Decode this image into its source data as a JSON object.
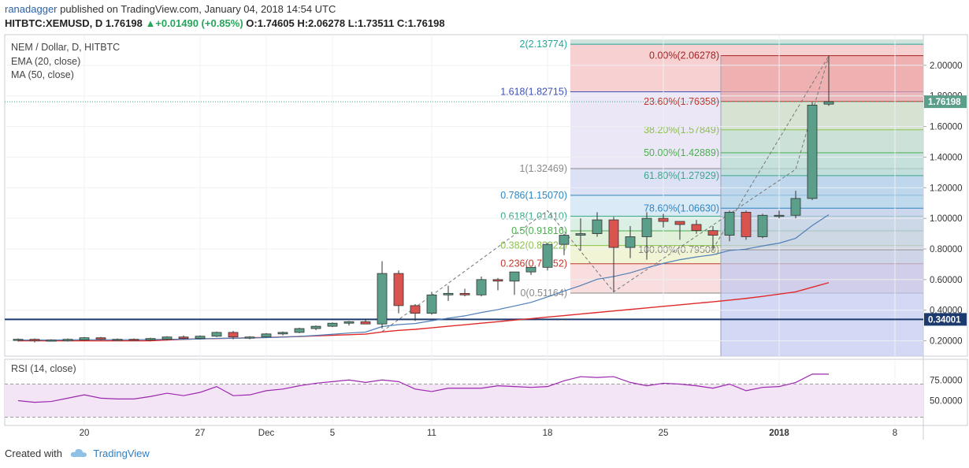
{
  "header": {
    "user": "ranadagger",
    "published": "published on TradingView.com, January 04, 2018 14:54 UTC",
    "symbol": "HITBTC:XEMUSD, D",
    "last": "1.76198",
    "change": "+0.01490 (+0.85%)",
    "open": "O:1.74605",
    "high": "H:2.06278",
    "low": "L:1.73511",
    "close": "C:1.76198"
  },
  "legend": {
    "title": "NEM / Dollar, D, HITBTC",
    "ema": "EMA (20, close)",
    "ma": "MA (50, close)",
    "rsi": "RSI (14, close)"
  },
  "footer": {
    "created": "Created with",
    "brand": "TradingView"
  },
  "colors": {
    "up": "#5b9e8a",
    "down": "#d9534f",
    "ema": "#4f7fb8",
    "ma": "#e02a2a",
    "rsi": "#9c27b0",
    "support": "#1c3a6e"
  },
  "chart_data": {
    "type": "candlestick",
    "title": "NEM / Dollar, D, HITBTC",
    "ylim": [
      0.1,
      2.2
    ],
    "yticks": [
      0.2,
      0.4,
      0.6,
      0.8,
      1.0,
      1.2,
      1.4,
      1.6,
      1.8,
      2.0
    ],
    "ytick_labels": [
      "0.20000",
      "0.40000",
      "0.60000",
      "0.80000",
      "1.00000",
      "1.20000",
      "1.40000",
      "1.60000",
      "1.80000",
      "2.00000"
    ],
    "xticks": [
      {
        "label": "20",
        "index": 4
      },
      {
        "label": "27",
        "index": 11
      },
      {
        "label": "Dec",
        "index": 15
      },
      {
        "label": "5",
        "index": 19
      },
      {
        "label": "11",
        "index": 25
      },
      {
        "label": "18",
        "index": 32
      },
      {
        "label": "25",
        "index": 39
      },
      {
        "label": "2018",
        "index": 46
      },
      {
        "label": "8",
        "index": 53
      }
    ],
    "candles": [
      [
        0.205,
        0.215,
        0.195,
        0.21
      ],
      [
        0.21,
        0.215,
        0.19,
        0.2
      ],
      [
        0.2,
        0.21,
        0.195,
        0.205
      ],
      [
        0.2,
        0.215,
        0.195,
        0.21
      ],
      [
        0.205,
        0.225,
        0.2,
        0.22
      ],
      [
        0.22,
        0.225,
        0.205,
        0.21
      ],
      [
        0.205,
        0.215,
        0.2,
        0.21
      ],
      [
        0.21,
        0.215,
        0.2,
        0.205
      ],
      [
        0.205,
        0.22,
        0.2,
        0.215
      ],
      [
        0.21,
        0.23,
        0.205,
        0.225
      ],
      [
        0.225,
        0.235,
        0.21,
        0.215
      ],
      [
        0.215,
        0.235,
        0.21,
        0.23
      ],
      [
        0.23,
        0.26,
        0.225,
        0.255
      ],
      [
        0.255,
        0.265,
        0.21,
        0.225
      ],
      [
        0.22,
        0.23,
        0.21,
        0.225
      ],
      [
        0.225,
        0.25,
        0.22,
        0.245
      ],
      [
        0.245,
        0.26,
        0.235,
        0.255
      ],
      [
        0.255,
        0.285,
        0.25,
        0.28
      ],
      [
        0.28,
        0.3,
        0.27,
        0.295
      ],
      [
        0.295,
        0.32,
        0.29,
        0.315
      ],
      [
        0.315,
        0.33,
        0.3,
        0.325
      ],
      [
        0.325,
        0.345,
        0.315,
        0.31
      ],
      [
        0.31,
        0.72,
        0.28,
        0.64
      ],
      [
        0.64,
        0.66,
        0.38,
        0.43
      ],
      [
        0.43,
        0.44,
        0.33,
        0.38
      ],
      [
        0.38,
        0.52,
        0.37,
        0.5
      ],
      [
        0.5,
        0.56,
        0.46,
        0.51
      ],
      [
        0.51,
        0.54,
        0.49,
        0.5
      ],
      [
        0.5,
        0.62,
        0.49,
        0.6
      ],
      [
        0.6,
        0.61,
        0.53,
        0.59
      ],
      [
        0.59,
        0.65,
        0.5,
        0.65
      ],
      [
        0.65,
        0.68,
        0.63,
        0.68
      ],
      [
        0.68,
        0.84,
        0.66,
        0.83
      ],
      [
        0.83,
        0.9,
        0.76,
        0.89
      ],
      [
        0.89,
        1.0,
        0.79,
        0.9
      ],
      [
        0.9,
        1.04,
        0.88,
        0.99
      ],
      [
        0.99,
        1.01,
        0.52,
        0.81
      ],
      [
        0.81,
        0.95,
        0.74,
        0.88
      ],
      [
        0.88,
        1.04,
        0.73,
        1.0
      ],
      [
        1.0,
        1.03,
        0.94,
        0.98
      ],
      [
        0.98,
        0.98,
        0.86,
        0.96
      ],
      [
        0.96,
        0.99,
        0.9,
        0.92
      ],
      [
        0.92,
        0.95,
        0.79,
        0.89
      ],
      [
        0.89,
        1.05,
        0.85,
        1.04
      ],
      [
        1.04,
        1.05,
        0.86,
        0.88
      ],
      [
        0.88,
        1.03,
        0.87,
        1.02
      ],
      [
        1.02,
        1.05,
        1.0,
        1.02
      ],
      [
        1.02,
        1.18,
        1.0,
        1.13
      ],
      [
        1.13,
        1.76,
        1.12,
        1.74
      ],
      [
        1.74605,
        2.06278,
        1.73511,
        1.76198
      ]
    ],
    "ema20": [
      0.205,
      0.205,
      0.205,
      0.206,
      0.207,
      0.207,
      0.207,
      0.207,
      0.208,
      0.21,
      0.21,
      0.212,
      0.216,
      0.217,
      0.218,
      0.221,
      0.224,
      0.229,
      0.235,
      0.243,
      0.251,
      0.257,
      0.293,
      0.306,
      0.313,
      0.331,
      0.348,
      0.363,
      0.385,
      0.404,
      0.427,
      0.451,
      0.487,
      0.525,
      0.561,
      0.602,
      0.62,
      0.644,
      0.677,
      0.706,
      0.73,
      0.748,
      0.762,
      0.79,
      0.799,
      0.82,
      0.838,
      0.87,
      0.953,
      1.024
    ],
    "ma50": [
      0.2,
      0.2,
      0.2,
      0.2,
      0.2,
      0.2,
      0.2,
      0.2,
      0.2,
      0.205,
      0.21,
      0.213,
      0.215,
      0.217,
      0.22,
      0.222,
      0.225,
      0.228,
      0.232,
      0.236,
      0.24,
      0.244,
      0.258,
      0.268,
      0.275,
      0.285,
      0.295,
      0.305,
      0.315,
      0.325,
      0.335,
      0.345,
      0.355,
      0.365,
      0.375,
      0.385,
      0.395,
      0.405,
      0.415,
      0.425,
      0.435,
      0.445,
      0.455,
      0.466,
      0.477,
      0.49,
      0.505,
      0.52,
      0.55,
      0.58
    ],
    "rsi": [
      50,
      48,
      49,
      53,
      57,
      53,
      52,
      52,
      55,
      59,
      56,
      60,
      67,
      56,
      57,
      62,
      64,
      68,
      71,
      73,
      75,
      72,
      75,
      73,
      64,
      61,
      65,
      65,
      65,
      68,
      67,
      66,
      67,
      74,
      79,
      78,
      79,
      72,
      68,
      71,
      70,
      68,
      65,
      70,
      62,
      66,
      67,
      72,
      82,
      82
    ],
    "rsi_ylim": [
      20,
      100
    ],
    "rsi_ticks": [
      50,
      75
    ],
    "rsi_tick_labels": [
      "50.0000",
      "75.0000"
    ],
    "rsi_band": [
      30,
      70
    ],
    "last_price_label": "1.76198",
    "support_level": 0.34001,
    "support_label": "0.34001",
    "fib_retracement_1": [
      {
        "label": "0.00%(2.06278)",
        "value": 2.06278,
        "color": "#a52222"
      },
      {
        "label": "23.60%(1.76358)",
        "value": 1.76358,
        "color": "#c0392b"
      },
      {
        "label": "38.20%(1.57849)",
        "value": 1.57849,
        "color": "#8bc34a"
      },
      {
        "label": "50.00%(1.42889)",
        "value": 1.42889,
        "color": "#4caf50"
      },
      {
        "label": "61.80%(1.27929)",
        "value": 1.27929,
        "color": "#3aa78a"
      },
      {
        "label": "78.60%(1.06630)",
        "value": 1.0663,
        "color": "#2e86c1"
      },
      {
        "label": "100.00%(0.79500)",
        "value": 0.795,
        "color": "#888888"
      }
    ],
    "fib_extension_2": [
      {
        "label": "2(2.13774)",
        "value": 2.13774,
        "color": "#26a69a"
      },
      {
        "label": "1.618(1.82715)",
        "value": 1.82715,
        "color": "#3f51b5"
      },
      {
        "label": "1(1.32469)",
        "value": 1.32469,
        "color": "#888888"
      },
      {
        "label": "0.786(1.15070)",
        "value": 1.1507,
        "color": "#2e86c1"
      },
      {
        "label": "0.618(1.01410)",
        "value": 1.0141,
        "color": "#3aa78a"
      },
      {
        "label": "0.5(0.91816)",
        "value": 0.91816,
        "color": "#4caf50"
      },
      {
        "label": "0.382(0.82222)",
        "value": 0.82222,
        "color": "#8bc34a"
      },
      {
        "label": "0.236(0.70352)",
        "value": 0.70352,
        "color": "#c0392b"
      },
      {
        "label": "0(0.51164)",
        "value": 0.51164,
        "color": "#888888"
      }
    ]
  }
}
